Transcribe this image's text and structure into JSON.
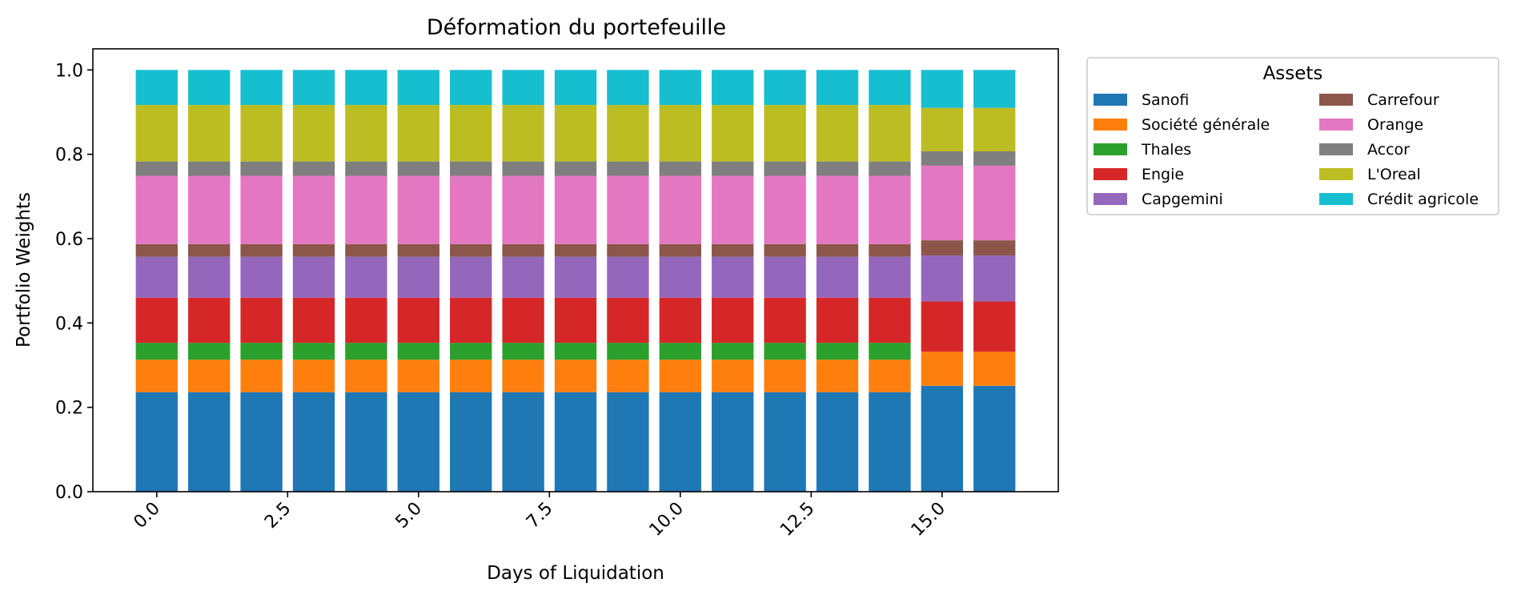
{
  "chart_data": {
    "type": "bar",
    "stacked": true,
    "title": "Déformation du portefeuille",
    "xlabel": "Days of Liquidation",
    "ylabel": "Portfolio Weights",
    "xlim": [
      -1.22,
      17.22
    ],
    "ylim": [
      0,
      1.05
    ],
    "x": [
      0,
      1,
      2,
      3,
      4,
      5,
      6,
      7,
      8,
      9,
      10,
      11,
      12,
      13,
      14,
      15,
      16
    ],
    "x_ticks": [
      0.0,
      2.5,
      5.0,
      7.5,
      10.0,
      12.5,
      15.0
    ],
    "x_tick_labels": [
      "0.0",
      "2.5",
      "5.0",
      "7.5",
      "10.0",
      "12.5",
      "15.0"
    ],
    "y_ticks": [
      0.0,
      0.2,
      0.4,
      0.6,
      0.8,
      1.0
    ],
    "y_tick_labels": [
      "0.0",
      "0.2",
      "0.4",
      "0.6",
      "0.8",
      "1.0"
    ],
    "grid": false,
    "legend": {
      "title": "Assets",
      "placement": "outside upper right",
      "columns": 2
    },
    "series": [
      {
        "name": "Sanofi",
        "color": "#1f77b4",
        "values": [
          0.236,
          0.236,
          0.236,
          0.236,
          0.236,
          0.236,
          0.236,
          0.236,
          0.236,
          0.236,
          0.236,
          0.236,
          0.236,
          0.236,
          0.236,
          0.251,
          0.251
        ]
      },
      {
        "name": "Société générale",
        "color": "#ff7f0e",
        "values": [
          0.077,
          0.077,
          0.077,
          0.077,
          0.077,
          0.077,
          0.077,
          0.077,
          0.077,
          0.077,
          0.077,
          0.077,
          0.077,
          0.077,
          0.077,
          0.081,
          0.081
        ]
      },
      {
        "name": "Thales",
        "color": "#2ca02c",
        "values": [
          0.04,
          0.04,
          0.04,
          0.04,
          0.04,
          0.04,
          0.04,
          0.04,
          0.04,
          0.04,
          0.04,
          0.04,
          0.04,
          0.04,
          0.04,
          0.0,
          0.0
        ]
      },
      {
        "name": "Engie",
        "color": "#d62728",
        "values": [
          0.107,
          0.107,
          0.107,
          0.107,
          0.107,
          0.107,
          0.107,
          0.107,
          0.107,
          0.107,
          0.107,
          0.107,
          0.107,
          0.107,
          0.107,
          0.119,
          0.119
        ]
      },
      {
        "name": "Capgemini",
        "color": "#9467bd",
        "values": [
          0.097,
          0.097,
          0.097,
          0.097,
          0.097,
          0.097,
          0.097,
          0.097,
          0.097,
          0.097,
          0.097,
          0.097,
          0.097,
          0.097,
          0.097,
          0.109,
          0.109
        ]
      },
      {
        "name": "Carrefour",
        "color": "#8c564b",
        "values": [
          0.03,
          0.03,
          0.03,
          0.03,
          0.03,
          0.03,
          0.03,
          0.03,
          0.03,
          0.03,
          0.03,
          0.03,
          0.03,
          0.03,
          0.03,
          0.036,
          0.036
        ]
      },
      {
        "name": "Orange",
        "color": "#e377c2",
        "values": [
          0.162,
          0.162,
          0.162,
          0.162,
          0.162,
          0.162,
          0.162,
          0.162,
          0.162,
          0.162,
          0.162,
          0.162,
          0.162,
          0.162,
          0.162,
          0.177,
          0.177
        ]
      },
      {
        "name": "Accor",
        "color": "#7f7f7f",
        "values": [
          0.034,
          0.034,
          0.034,
          0.034,
          0.034,
          0.034,
          0.034,
          0.034,
          0.034,
          0.034,
          0.034,
          0.034,
          0.034,
          0.034,
          0.034,
          0.034,
          0.034
        ]
      },
      {
        "name": "L'Oreal",
        "color": "#bcbd22",
        "values": [
          0.134,
          0.134,
          0.134,
          0.134,
          0.134,
          0.134,
          0.134,
          0.134,
          0.134,
          0.134,
          0.134,
          0.134,
          0.134,
          0.134,
          0.134,
          0.103,
          0.103
        ]
      },
      {
        "name": "Crédit agricole",
        "color": "#17becf",
        "values": [
          0.083,
          0.083,
          0.083,
          0.083,
          0.083,
          0.083,
          0.083,
          0.083,
          0.083,
          0.083,
          0.083,
          0.083,
          0.083,
          0.083,
          0.083,
          0.09,
          0.09
        ]
      }
    ]
  }
}
